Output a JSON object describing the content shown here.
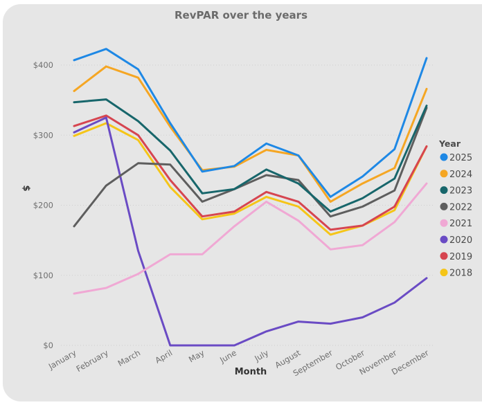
{
  "chart_data": {
    "type": "line",
    "title": "RevPAR over the years",
    "xlabel": "Month",
    "ylabel": "$",
    "ylim": [
      0,
      420
    ],
    "yticks": [
      0,
      100,
      200,
      300,
      400
    ],
    "ytick_labels": [
      "$0",
      "$100",
      "$200",
      "$300",
      "$400"
    ],
    "grid": true,
    "legend_title": "Year",
    "legend_position": "right",
    "categories": [
      "January",
      "February",
      "March",
      "April",
      "May",
      "June",
      "July",
      "August",
      "September",
      "October",
      "November",
      "December"
    ],
    "series": [
      {
        "name": "2025",
        "color": "#1e88e5",
        "values": [
          407,
          423,
          394,
          317,
          248,
          256,
          288,
          271,
          212,
          241,
          280,
          410
        ]
      },
      {
        "name": "2024",
        "color": "#f5a623",
        "values": [
          363,
          398,
          382,
          312,
          250,
          255,
          279,
          271,
          205,
          231,
          253,
          366
        ]
      },
      {
        "name": "2023",
        "color": "#17666b",
        "values": [
          347,
          351,
          320,
          278,
          217,
          223,
          251,
          231,
          191,
          210,
          238,
          342
        ]
      },
      {
        "name": "2022",
        "color": "#5e5e5e",
        "values": [
          170,
          228,
          260,
          258,
          205,
          223,
          243,
          236,
          184,
          198,
          221,
          339
        ]
      },
      {
        "name": "2021",
        "color": "#f0a8d4",
        "values": [
          74,
          82,
          102,
          130,
          130,
          170,
          205,
          178,
          137,
          143,
          176,
          231
        ]
      },
      {
        "name": "2020",
        "color": "#6a4bc4",
        "values": [
          304,
          325,
          135,
          0,
          0,
          0,
          20,
          34,
          31,
          40,
          61,
          96
        ]
      },
      {
        "name": "2019",
        "color": "#d64550",
        "values": [
          313,
          328,
          300,
          236,
          184,
          191,
          219,
          205,
          165,
          171,
          198,
          284
        ]
      },
      {
        "name": "2018",
        "color": "#f5c518",
        "values": [
          299,
          317,
          293,
          226,
          180,
          188,
          212,
          198,
          158,
          171,
          193,
          284
        ]
      }
    ]
  }
}
